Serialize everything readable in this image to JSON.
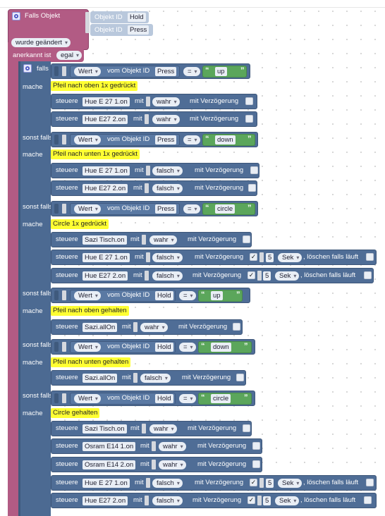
{
  "trigger": {
    "title": "Falls Objekt",
    "objekt_id_label": "Objekt ID",
    "obj1_value": "Hold",
    "obj2_value": "Press",
    "changed_label": "wurde geändert",
    "ack_label": "anerkannt ist",
    "ack_value": "egal"
  },
  "control": {
    "falls_label": "falls"
  },
  "common": {
    "machen": "mache",
    "sonst_falls": "sonst falls",
    "wert": "Wert",
    "vom_objekt_id": "vom Objekt ID",
    "eq": "=",
    "steuere": "steuere",
    "mit": "mit",
    "mit_verzoegerung": "mit Verzögerung",
    "sek": "Sek",
    "loeschen": ", löschen falls läuft",
    "check": "✓"
  },
  "conditions": [
    {
      "obj": "Press",
      "value": "up"
    },
    {
      "obj": "Press",
      "value": "down"
    },
    {
      "obj": "Press",
      "value": "circle"
    },
    {
      "obj": "Hold",
      "value": "up"
    },
    {
      "obj": "Hold",
      "value": "down"
    },
    {
      "obj": "Hold",
      "value": "circle"
    }
  ],
  "comments": [
    "Pfeil nach oben 1x gedrückt",
    "Pfeil nach unten 1x gedrückt",
    "Circle 1x gedrückt",
    "Pfeil nach oben gehalten",
    "Pfeil nach unten gehalten",
    "Circle gehalten"
  ],
  "statements": [
    {
      "device": "Hue E 27 1.on",
      "val": "wahr"
    },
    {
      "device": "Hue E27 2.on",
      "val": "wahr"
    },
    {
      "device": "Hue E 27 1.on",
      "val": "falsch"
    },
    {
      "device": "Hue E27 2.on",
      "val": "falsch"
    },
    {
      "device": "Sazi Tisch.on",
      "val": "wahr"
    },
    {
      "device": "Hue E 27 1.on",
      "val": "falsch",
      "delay": "5"
    },
    {
      "device": "Hue E27 2.on",
      "val": "falsch",
      "delay": "5"
    },
    {
      "device": "Sazi.allOn",
      "val": "wahr"
    },
    {
      "device": "Sazi.allOn",
      "val": "falsch"
    },
    {
      "device": "Sazi Tisch.on",
      "val": "wahr"
    },
    {
      "device": "Osram E14 1.on",
      "val": "wahr"
    },
    {
      "device": "Osram E14 2.on",
      "val": "wahr"
    },
    {
      "device": "Hue E 27 1.on",
      "val": "falsch",
      "delay": "5"
    },
    {
      "device": "Hue E27 2.on",
      "val": "falsch",
      "delay": "5"
    }
  ]
}
